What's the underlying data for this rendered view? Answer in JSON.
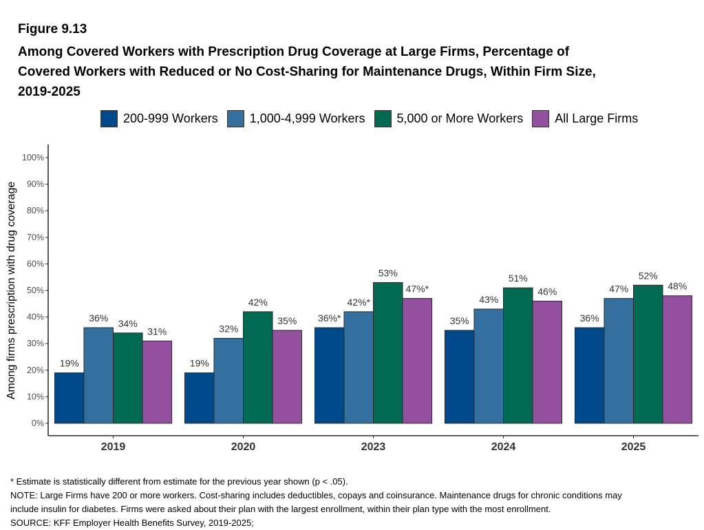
{
  "figure_label": "Figure 9.13",
  "chart_data": {
    "type": "bar",
    "title_lines": [
      "Among Covered Workers with Prescription Drug Coverage at Large Firms, Percentage of",
      "Covered Workers with Reduced or No Cost-Sharing for Maintenance Drugs, Within Firm Size,",
      "2019-2025"
    ],
    "ylabel": "Among firms prescription with drug coverage",
    "xlabel": "",
    "ylim": [
      0,
      100
    ],
    "yticks": [
      0,
      10,
      20,
      30,
      40,
      50,
      60,
      70,
      80,
      90,
      100
    ],
    "ytick_labels": [
      "0%",
      "10%",
      "20%",
      "30%",
      "40%",
      "50%",
      "60%",
      "70%",
      "80%",
      "90%",
      "100%"
    ],
    "categories": [
      "2019",
      "2020",
      "2023",
      "2024",
      "2025"
    ],
    "grid": false,
    "legend_position": "top",
    "series": [
      {
        "name": "200-999 Workers",
        "color": "#004a8b",
        "values": [
          19,
          19,
          36,
          35,
          36
        ],
        "labels": [
          "19%",
          "19%",
          "36%*",
          "35%",
          "36%"
        ]
      },
      {
        "name": "1,000-4,999 Workers",
        "color": "#336f9f",
        "values": [
          36,
          32,
          42,
          43,
          47
        ],
        "labels": [
          "36%",
          "32%",
          "42%*",
          "43%",
          "47%"
        ]
      },
      {
        "name": "5,000 or More Workers",
        "color": "#006a52",
        "values": [
          34,
          42,
          53,
          51,
          52
        ],
        "labels": [
          "34%",
          "42%",
          "53%",
          "51%",
          "52%"
        ]
      },
      {
        "name": "All Large Firms",
        "color": "#92509f",
        "values": [
          31,
          35,
          47,
          46,
          48
        ],
        "labels": [
          "31%",
          "35%",
          "47%*",
          "46%",
          "48%"
        ]
      }
    ]
  },
  "footnotes": [
    "* Estimate is statistically different from estimate for the previous year shown (p < .05).",
    "NOTE: Large Firms have 200 or more workers.  Cost-sharing includes deductibles, copays and coinsurance. Maintenance drugs for chronic conditions may",
    "include insulin for diabetes. Firms were asked about their plan with the largest enrollment, within their plan type with the most enrollment.",
    "SOURCE: KFF Employer Health Benefits Survey, 2019-2025;"
  ]
}
